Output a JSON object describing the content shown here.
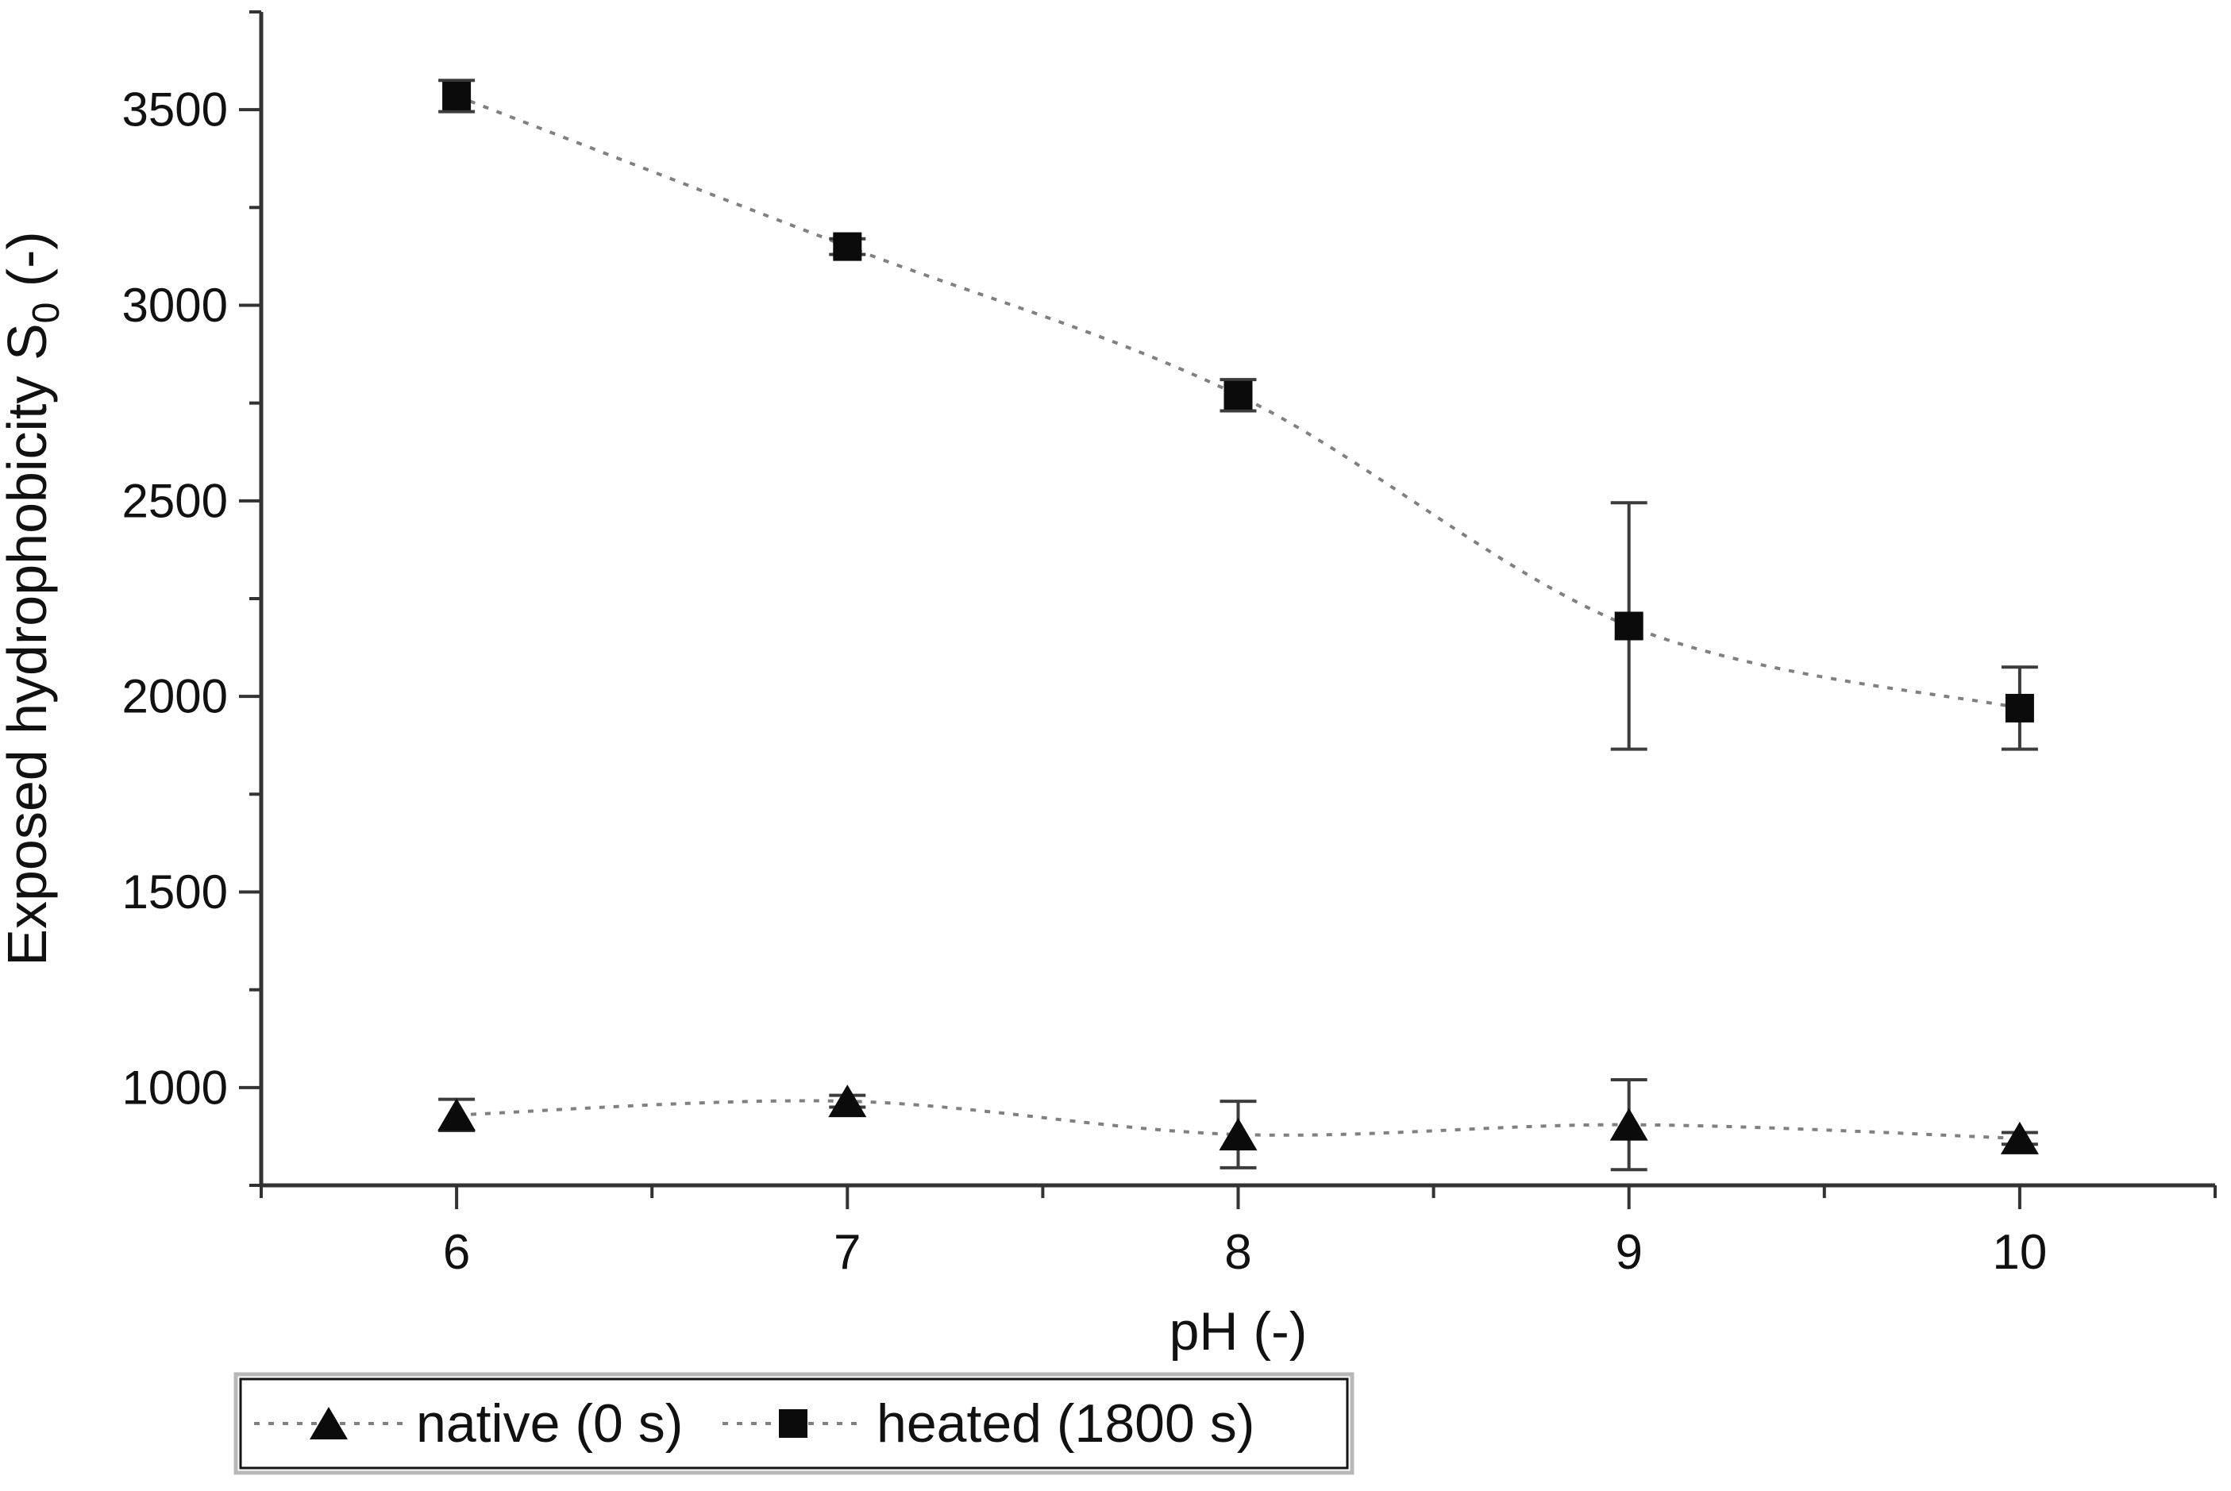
{
  "figure": {
    "background": "#ffffff",
    "axis_color": "#333333",
    "curve_color": "#808080",
    "marker_color": "#0b0b0b",
    "error_color": "#3c3c3c",
    "legend_border_color": "#141414",
    "legend_shadow_color": "#b8b8b8"
  },
  "axes": {
    "xlabel": "pH (-)",
    "ylabel_main": "Exposed hydrophobicity S",
    "ylabel_sub": "0",
    "ylabel_suffix": " (-)",
    "x_tick_labels": [
      "6",
      "7",
      "8",
      "9",
      "10"
    ],
    "y_tick_labels": [
      "1000",
      "1500",
      "2000",
      "2500",
      "3000",
      "3500"
    ]
  },
  "legend": {
    "entries": [
      {
        "label": "native (0 s)",
        "marker": "triangle"
      },
      {
        "label": "heated (1800 s)",
        "marker": "square"
      }
    ]
  },
  "chart_data": {
    "type": "line",
    "x": [
      6,
      7,
      8,
      9,
      10
    ],
    "series": [
      {
        "name": "native (0 s)",
        "marker": "triangle",
        "values": [
          930,
          965,
          880,
          905,
          870
        ],
        "errors": [
          40,
          15,
          85,
          115,
          15
        ]
      },
      {
        "name": "heated (1800 s)",
        "marker": "square",
        "values": [
          3535,
          3150,
          2770,
          2180,
          1970
        ],
        "errors": [
          40,
          20,
          40,
          315,
          105
        ]
      }
    ],
    "title": "",
    "xlabel": "pH (-)",
    "ylabel": "Exposed hydrophobicity S0 (-)",
    "xlim": [
      5.5,
      10.5
    ],
    "ylim": [
      750,
      3750
    ],
    "x_major_ticks": [
      6,
      7,
      8,
      9,
      10
    ],
    "x_minor_step": 0.5,
    "y_major_ticks": [
      1000,
      1500,
      2000,
      2500,
      3000,
      3500
    ],
    "y_minor_step": 250,
    "grid": false,
    "line_style": "dashed",
    "legend_position": "bottom-left-below-axis"
  }
}
